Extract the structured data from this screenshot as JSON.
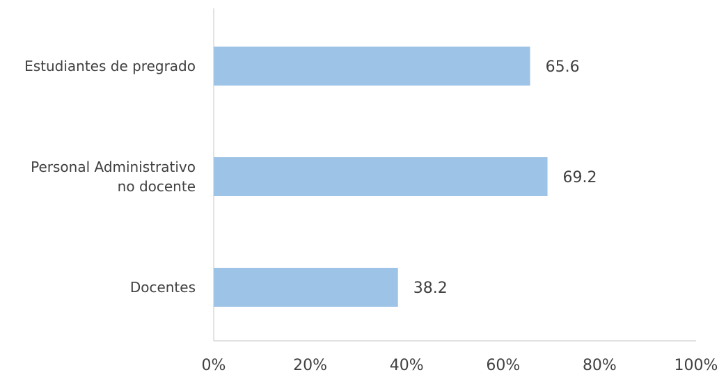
{
  "chart_data": {
    "type": "bar",
    "orientation": "horizontal",
    "categories": [
      [
        "Estudiantes de pregrado"
      ],
      [
        "Personal Administrativo",
        "no docente"
      ],
      [
        "Docentes"
      ]
    ],
    "values": [
      65.6,
      69.2,
      38.2
    ],
    "value_labels": [
      "65.6",
      "69.2",
      "38.2"
    ],
    "xlim": [
      0,
      100
    ],
    "x_ticks": [
      0,
      20,
      40,
      60,
      80,
      100
    ],
    "x_tick_labels": [
      "0%",
      "20%",
      "40%",
      "60%",
      "80%",
      "100%"
    ],
    "title": "",
    "xlabel": "",
    "ylabel": "",
    "grid": false,
    "legend": "none",
    "colors": {
      "bar": "#9DC3E6",
      "axis": "#D9D9D9",
      "text": "#404040"
    }
  }
}
